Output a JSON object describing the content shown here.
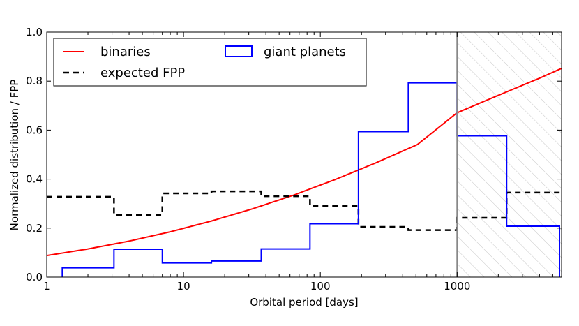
{
  "chart_data": {
    "type": "step",
    "title": "",
    "xlabel": "Orbital period [days]",
    "ylabel": "Normalized distribution / FPP",
    "xscale": "log",
    "xlim": [
      1,
      5800
    ],
    "ylim": [
      0.0,
      1.0
    ],
    "xticks": [
      1,
      10,
      100,
      1000
    ],
    "xtick_labels": [
      "1",
      "10",
      "100",
      "1000"
    ],
    "yticks": [
      0.0,
      0.2,
      0.4,
      0.6,
      0.8,
      1.0
    ],
    "ytick_labels": [
      "0.0",
      "0.2",
      "0.4",
      "0.6",
      "0.8",
      "1.0"
    ],
    "legend_position": "top-left",
    "shaded_region": {
      "x_start": 1000,
      "x_end": 5800,
      "pattern": "hatch"
    },
    "vertical_line_x": 1000,
    "series": [
      {
        "name": "binaries",
        "style": "solid",
        "color": "#ff0000",
        "x": [
          1,
          2,
          4,
          8,
          16,
          32,
          64,
          128,
          256,
          512,
          1000,
          2000,
          4000,
          5800
        ],
        "y": [
          0.088,
          0.115,
          0.147,
          0.185,
          0.229,
          0.279,
          0.335,
          0.398,
          0.467,
          0.541,
          0.671,
          0.742,
          0.812,
          0.852
        ]
      },
      {
        "name": "expected FPP",
        "style": "dashed",
        "color": "#000000",
        "edges": [
          1,
          3.1,
          7,
          16,
          37,
          84,
          190,
          440,
          1000,
          2300,
          5800
        ],
        "values": [
          0.328,
          0.254,
          0.342,
          0.35,
          0.33,
          0.29,
          0.205,
          0.192,
          0.242,
          0.345
        ]
      },
      {
        "name": "giant planets",
        "style": "step",
        "color": "#0000ff",
        "edges": [
          1.3,
          3.1,
          7,
          16,
          37,
          84,
          190,
          440,
          1000,
          2300,
          5600
        ],
        "values": [
          0.038,
          0.114,
          0.058,
          0.066,
          0.115,
          0.218,
          0.594,
          0.793,
          0.577,
          0.208
        ]
      }
    ]
  }
}
